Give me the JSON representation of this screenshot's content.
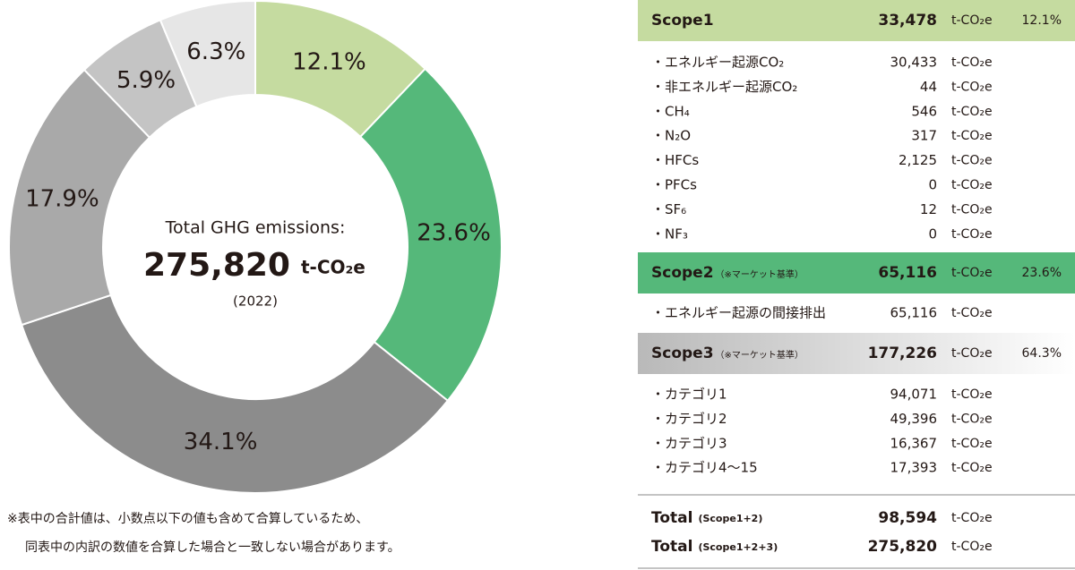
{
  "chart_data": {
    "type": "pie",
    "values": [
      12.1,
      23.6,
      34.1,
      17.9,
      5.9,
      6.3
    ],
    "value_labels": [
      "12.1%",
      "23.6%",
      "34.1%",
      "17.9%",
      "5.9%",
      "6.3%"
    ],
    "colors": [
      "#c5dba0",
      "#55b87a",
      "#8c8c8c",
      "#a9a9a9",
      "#c4c4c4",
      "#e6e6e6"
    ],
    "center_title": "Total GHG emissions:",
    "center_value": "275,820",
    "center_unit": "t-CO₂e",
    "center_year": "(2022)"
  },
  "table": {
    "sections": [
      {
        "name": "Scope1",
        "note": null,
        "value": "33,478",
        "unit": "t-CO₂e",
        "share": "12.1%",
        "rows": [
          {
            "label": "・エネルギー起源CO₂",
            "value": "30,433",
            "unit": "t-CO₂e"
          },
          {
            "label": "・非エネルギー起源CO₂",
            "value": "44",
            "unit": "t-CO₂e"
          },
          {
            "label": "・CH₄",
            "value": "546",
            "unit": "t-CO₂e"
          },
          {
            "label": "・N₂O",
            "value": "317",
            "unit": "t-CO₂e"
          },
          {
            "label": "・HFCs",
            "value": "2,125",
            "unit": "t-CO₂e"
          },
          {
            "label": "・PFCs",
            "value": "0",
            "unit": "t-CO₂e"
          },
          {
            "label": "・SF₆",
            "value": "12",
            "unit": "t-CO₂e"
          },
          {
            "label": "・NF₃",
            "value": "0",
            "unit": "t-CO₂e"
          }
        ]
      },
      {
        "name": "Scope2",
        "note": "（※マーケット基準）",
        "value": "65,116",
        "unit": "t-CO₂e",
        "share": "23.6%",
        "rows": [
          {
            "label": "・エネルギー起源の間接排出",
            "value": "65,116",
            "unit": "t-CO₂e"
          }
        ]
      },
      {
        "name": "Scope3",
        "note": "（※マーケット基準）",
        "value": "177,226",
        "unit": "t-CO₂e",
        "share": "64.3%",
        "rows": [
          {
            "label": "・カテゴリ1",
            "value": "94,071",
            "unit": "t-CO₂e"
          },
          {
            "label": "・カテゴリ2",
            "value": "49,396",
            "unit": "t-CO₂e"
          },
          {
            "label": "・カテゴリ3",
            "value": "16,367",
            "unit": "t-CO₂e"
          },
          {
            "label": "・カテゴリ4〜15",
            "value": "17,393",
            "unit": "t-CO₂e"
          }
        ]
      }
    ],
    "totals": [
      {
        "label": "Total",
        "note": "(Scope1+2)",
        "value": "98,594",
        "unit": "t-CO₂e"
      },
      {
        "label": "Total",
        "note": "(Scope1+2+3)",
        "value": "275,820",
        "unit": "t-CO₂e"
      }
    ]
  },
  "note": [
    "※表中の合計値は、小数点以下の値も含めて合算しているため、",
    "同表中の内訳の数値を合算した場合と一致しない場合があります。"
  ]
}
